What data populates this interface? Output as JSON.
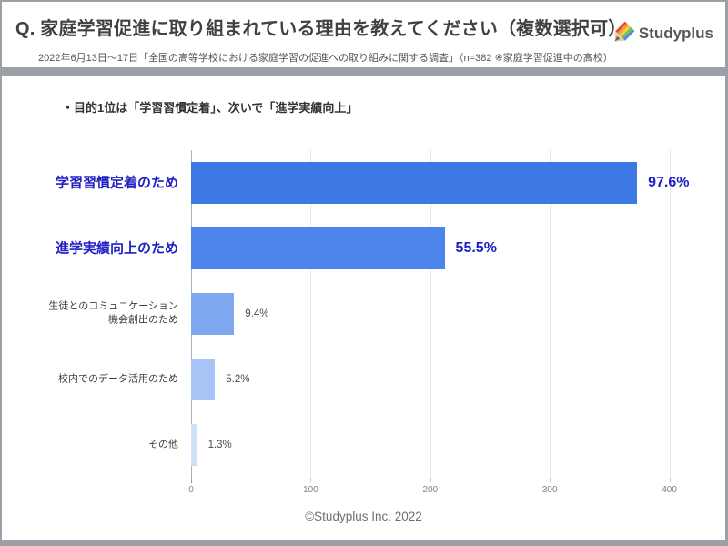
{
  "header": {
    "title": "Q. 家庭学習促進に取り組まれている理由を教えてください（複数選択可）",
    "subtitle": "2022年6月13日～17日「全国の高等学校における家庭学習の促進への取り組みに関する調査」（n=382 ※家庭学習促進中の高校）",
    "logo_text": "Studyplus",
    "logo_icon": "pencil-icon"
  },
  "headline": {
    "text": "・目的1位は「学習習慣定着」、次いで「進学実績向上」"
  },
  "footer": {
    "text": "©Studyplus Inc. 2022"
  },
  "colors": {
    "frame_gray": "#9aa0a6",
    "card_white": "#ffffff",
    "highlight_navy": "#1f1fc4",
    "grid_line": "#e8e8e8",
    "axis_line": "#aeb2b6",
    "tick_label_gray": "#818181",
    "bar_colors": [
      "#3c79e3",
      "#4e85eb",
      "#80a8f1",
      "#a8c3f6",
      "#cfdef9"
    ]
  },
  "chart_data": {
    "type": "bar",
    "orientation": "horizontal",
    "title": "",
    "xlabel": "",
    "ylabel": "",
    "categories": [
      "学習習慣定着のため",
      "進学実績向上のため",
      "生徒とのコミュニケーション\n機会創出のため",
      "校内でのデータ活用のため",
      "その他"
    ],
    "values": [
      373,
      212,
      36,
      20,
      5
    ],
    "percent_labels": [
      "97.6%",
      "55.5%",
      "9.4%",
      "5.2%",
      "1.3%"
    ],
    "x_ticks": [
      0,
      100,
      200,
      300,
      400
    ],
    "xlim": [
      0,
      430
    ],
    "sample_note": "n=382",
    "grid": true,
    "legend": "none",
    "highlight_rows": [
      0,
      1
    ]
  }
}
